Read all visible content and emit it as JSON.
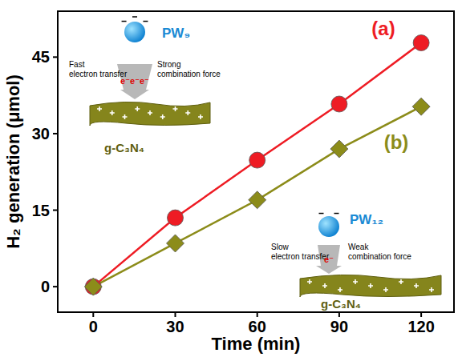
{
  "chart_data": {
    "type": "line",
    "x_label": "Time (min)",
    "y_label": "H₂ generation (μmol)",
    "x": [
      0,
      30,
      60,
      90,
      120
    ],
    "series": [
      {
        "name": "(a)",
        "color": "#ee1c24",
        "marker": "circle",
        "values": [
          0,
          13.5,
          24.8,
          35.8,
          47.8
        ]
      },
      {
        "name": "(b)",
        "color": "#8c8c1a",
        "marker": "diamond",
        "values": [
          0,
          8.5,
          17.0,
          27.0,
          35.3
        ]
      }
    ],
    "xlim": [
      -13,
      132
    ],
    "xticks": [
      0,
      30,
      60,
      90,
      120
    ],
    "ylim": [
      -5,
      54
    ],
    "yticks": [
      0,
      15,
      30,
      45
    ],
    "grid": false,
    "annotations": [
      {
        "text": "PW₉"
      },
      {
        "text": "Fast electron transfer"
      },
      {
        "text": "Strong combination force"
      },
      {
        "text": "e⁻e⁻e⁻"
      },
      {
        "text": "g-C₃N₄"
      },
      {
        "text": "PW₁₂"
      },
      {
        "text": "Slow electron transfer"
      },
      {
        "text": "Weak combination force"
      },
      {
        "text": "e⁻"
      },
      {
        "text": "g-C₃N₄"
      }
    ]
  }
}
